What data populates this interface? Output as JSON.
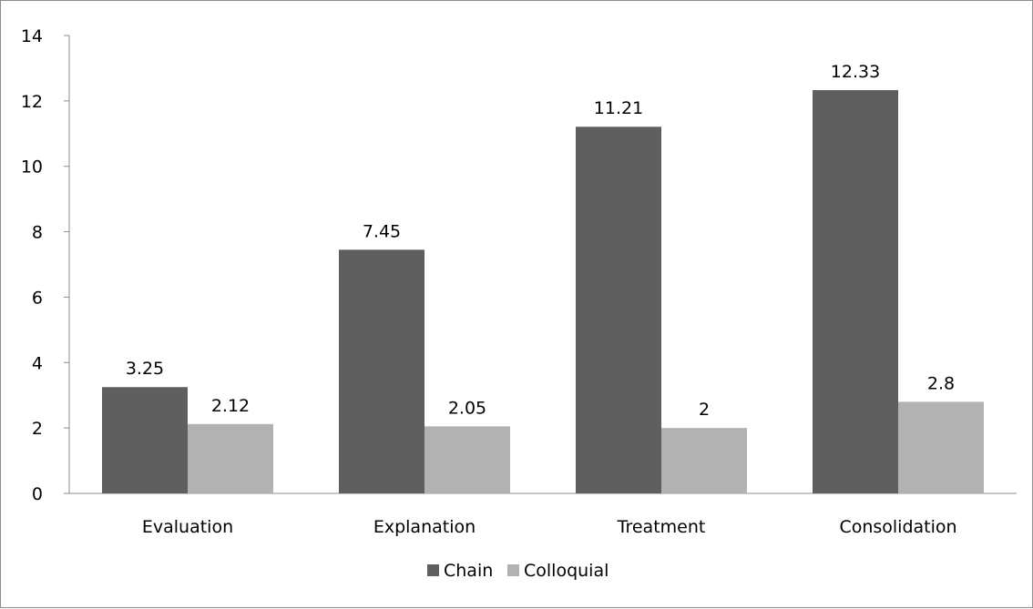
{
  "chart_data": {
    "type": "bar",
    "title": "",
    "xlabel": "",
    "ylabel": "",
    "categories": [
      "Evaluation",
      "Explanation",
      "Treatment",
      "Consolidation"
    ],
    "series": [
      {
        "name": "Chain",
        "values": [
          3.25,
          7.45,
          11.21,
          12.33
        ],
        "color": "#5f5f5f"
      },
      {
        "name": "Colloquial",
        "values": [
          2.12,
          2.05,
          2,
          2.8
        ],
        "color": "#b2b2b2"
      }
    ],
    "data_labels": [
      [
        "3.25",
        "7.45",
        "11.21",
        "12.33"
      ],
      [
        "2.12",
        "2.05",
        "2",
        "2.8"
      ]
    ],
    "ylim": [
      0,
      14
    ],
    "yticks": [
      0,
      2,
      4,
      6,
      8,
      10,
      12,
      14
    ],
    "grid": false,
    "legend": "bottom"
  }
}
